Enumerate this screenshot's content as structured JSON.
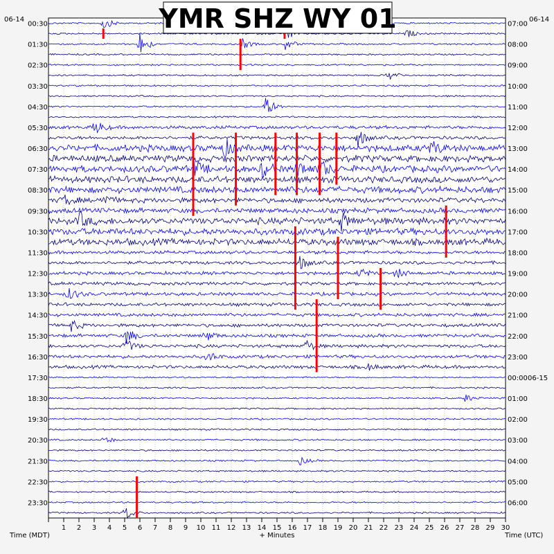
{
  "chart_data": {
    "type": "helicorder",
    "title": "YMR SHZ WY 01",
    "left_date": "06-14",
    "right_date_top": "06-14",
    "right_date_change": "06-15",
    "left_axis_title": "Time (MDT)",
    "right_axis_title": "Time (UTC)",
    "xlabel": "+ Minutes",
    "xlim": [
      0,
      30
    ],
    "x_ticks": [
      "1",
      "2",
      "3",
      "4",
      "5",
      "6",
      "7",
      "8",
      "9",
      "10",
      "11",
      "12",
      "13",
      "14",
      "15",
      "16",
      "17",
      "18",
      "19",
      "20",
      "21",
      "22",
      "23",
      "24",
      "25",
      "26",
      "27",
      "28",
      "29",
      "30"
    ],
    "left_time_labels": [
      "00:30",
      "01:30",
      "02:30",
      "03:30",
      "04:30",
      "05:30",
      "06:30",
      "07:30",
      "08:30",
      "09:30",
      "10:30",
      "11:30",
      "12:30",
      "13:30",
      "14:30",
      "15:30",
      "16:30",
      "17:30",
      "18:30",
      "19:30",
      "20:30",
      "21:30",
      "22:30",
      "23:30"
    ],
    "right_time_labels": [
      "07:00",
      "08:00",
      "09:00",
      "10:00",
      "11:00",
      "12:00",
      "13:00",
      "14:00",
      "15:00",
      "16:00",
      "17:00",
      "18:00",
      "19:00",
      "20:00",
      "21:00",
      "22:00",
      "23:00",
      "00:00",
      "01:00",
      "02:00",
      "03:00",
      "04:00",
      "05:00",
      "06:00"
    ],
    "trace_rows": 48,
    "minutes_per_row": 30,
    "trace_colors": [
      "#0000ff",
      "#000080"
    ],
    "clip_color": "#ff0000",
    "event_color": "#0000ff",
    "grid": true,
    "row_amplitude": [
      1,
      1,
      1,
      1,
      1,
      1,
      1,
      1,
      1,
      1,
      2,
      2,
      4,
      4,
      4,
      4,
      4,
      3,
      3,
      4,
      4,
      4,
      2,
      2,
      2,
      2,
      2,
      2,
      2,
      2,
      2,
      2,
      2,
      2,
      1,
      1,
      1,
      1,
      1,
      1,
      1,
      1,
      1,
      1,
      1,
      1,
      1,
      1
    ],
    "events": [
      {
        "row": 0,
        "minute": 3.6,
        "amplitude": 9
      },
      {
        "row": 1,
        "minute": 15.5,
        "amplitude": 14
      },
      {
        "row": 1,
        "minute": 23.5,
        "amplitude": 6
      },
      {
        "row": 2,
        "minute": 6.0,
        "amplitude": 18
      },
      {
        "row": 2,
        "minute": 12.7,
        "amplitude": 8
      },
      {
        "row": 2,
        "minute": 15.5,
        "amplitude": 10
      },
      {
        "row": 5,
        "minute": 22.3,
        "amplitude": 8
      },
      {
        "row": 8,
        "minute": 14.2,
        "amplitude": 18
      },
      {
        "row": 10,
        "minute": 3.0,
        "amplitude": 12
      },
      {
        "row": 11,
        "minute": 20.3,
        "amplitude": 14
      },
      {
        "row": 12,
        "minute": 11.5,
        "amplitude": 14
      },
      {
        "row": 12,
        "minute": 25.1,
        "amplitude": 12
      },
      {
        "row": 14,
        "minute": 9.5,
        "amplitude": 14
      },
      {
        "row": 14,
        "minute": 14.0,
        "amplitude": 14
      },
      {
        "row": 14,
        "minute": 16.3,
        "amplitude": 14
      },
      {
        "row": 14,
        "minute": 17.8,
        "amplitude": 14
      },
      {
        "row": 17,
        "minute": 0.9,
        "amplitude": 10
      },
      {
        "row": 17,
        "minute": 3.5,
        "amplitude": 10
      },
      {
        "row": 19,
        "minute": 2.0,
        "amplitude": 12
      },
      {
        "row": 19,
        "minute": 19.2,
        "amplitude": 12
      },
      {
        "row": 23,
        "minute": 16.5,
        "amplitude": 10
      },
      {
        "row": 24,
        "minute": 20.4,
        "amplitude": 8
      },
      {
        "row": 24,
        "minute": 22.8,
        "amplitude": 8
      },
      {
        "row": 26,
        "minute": 1.3,
        "amplitude": 10
      },
      {
        "row": 29,
        "minute": 1.5,
        "amplitude": 8
      },
      {
        "row": 30,
        "minute": 10.3,
        "amplitude": 8
      },
      {
        "row": 30,
        "minute": 5.1,
        "amplitude": 12
      },
      {
        "row": 31,
        "minute": 5.0,
        "amplitude": 12
      },
      {
        "row": 31,
        "minute": 16.8,
        "amplitude": 10
      },
      {
        "row": 32,
        "minute": 10.4,
        "amplitude": 8
      },
      {
        "row": 33,
        "minute": 20.9,
        "amplitude": 6
      },
      {
        "row": 36,
        "minute": 27.3,
        "amplitude": 6
      },
      {
        "row": 40,
        "minute": 3.6,
        "amplitude": 6
      },
      {
        "row": 42,
        "minute": 16.5,
        "amplitude": 6
      },
      {
        "row": 47,
        "minute": 5.0,
        "amplitude": 12
      }
    ],
    "clipped": [
      {
        "row": 1,
        "minute": 3.6,
        "length_rows": 1
      },
      {
        "row": 2,
        "minute": 12.6,
        "length_rows": 3
      },
      {
        "row": 1,
        "minute": 15.5,
        "length_rows": 1
      },
      {
        "row": 11,
        "minute": 9.5,
        "length_rows": 8
      },
      {
        "row": 11,
        "minute": 12.3,
        "length_rows": 7
      },
      {
        "row": 11,
        "minute": 14.9,
        "length_rows": 6
      },
      {
        "row": 11,
        "minute": 16.3,
        "length_rows": 6
      },
      {
        "row": 11,
        "minute": 17.8,
        "length_rows": 6
      },
      {
        "row": 11,
        "minute": 18.9,
        "length_rows": 5
      },
      {
        "row": 20,
        "minute": 16.2,
        "length_rows": 8
      },
      {
        "row": 21,
        "minute": 19.0,
        "length_rows": 6
      },
      {
        "row": 24,
        "minute": 21.8,
        "length_rows": 4
      },
      {
        "row": 27,
        "minute": 17.6,
        "length_rows": 7
      },
      {
        "row": 18,
        "minute": 26.1,
        "length_rows": 5
      },
      {
        "row": 44,
        "minute": 5.8,
        "length_rows": 4
      }
    ]
  }
}
